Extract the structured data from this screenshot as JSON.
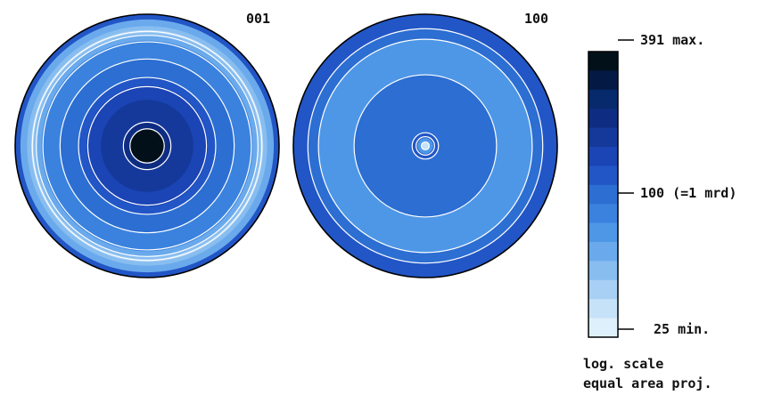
{
  "chart_data": {
    "type": "heatmap",
    "subtype": "pole-figure",
    "pole_figures": [
      {
        "label": "001",
        "rings": [
          {
            "r_from": 1.0,
            "r_to": 0.96,
            "level": 6
          },
          {
            "r_from": 0.96,
            "level": 10
          },
          {
            "r_from": 0.91,
            "level": 11
          },
          {
            "r_from": 0.88,
            "level": 12
          },
          {
            "r_from": 0.86,
            "level": 11
          },
          {
            "r_from": 0.84,
            "level": 10
          },
          {
            "r_from": 0.8,
            "level": 8
          },
          {
            "r_from": 0.66,
            "level": 7
          },
          {
            "r_from": 0.52,
            "level": 6
          },
          {
            "r_from": 0.46,
            "level": 5
          },
          {
            "r_from": 0.35,
            "level": 4
          },
          {
            "r_from": 0.18,
            "level": 3
          },
          {
            "r_from": 0.13,
            "level": 0
          }
        ],
        "contours": [
          0.87,
          0.84,
          0.79,
          0.66,
          0.52,
          0.45,
          0.18,
          0.13
        ]
      },
      {
        "label": "100",
        "rings": [
          {
            "r_from": 1.0,
            "level": 6
          },
          {
            "r_from": 0.89,
            "level": 7
          },
          {
            "r_from": 0.81,
            "level": 9
          },
          {
            "r_from": 0.54,
            "level": 7
          },
          {
            "r_from": 0.1,
            "level": 6
          },
          {
            "r_from": 0.06,
            "level": 9
          },
          {
            "r_from": 0.03,
            "level": 13
          }
        ],
        "contours": [
          0.89,
          0.81,
          0.54,
          0.1,
          0.07,
          0.03
        ]
      }
    ],
    "color_scale": {
      "max_value": 391,
      "mid_value": 100,
      "min_value": 25,
      "max_label": "391 max.",
      "mid_label": "100 (=1 mrd)",
      "min_label": "25 min.",
      "colors": [
        "#02101a",
        "#041a45",
        "#072a6c",
        "#0e2d82",
        "#14399a",
        "#1b44b4",
        "#2256c6",
        "#2c6ed2",
        "#3a82de",
        "#4e97e7",
        "#6aaaec",
        "#88bdf0",
        "#a8d0f4",
        "#c6e2f8",
        "#def0fb"
      ]
    },
    "notes": [
      "log. scale",
      "equal area proj."
    ]
  }
}
